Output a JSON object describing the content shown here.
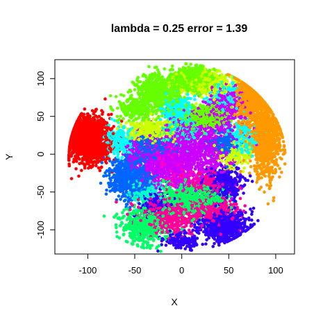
{
  "chart_data": {
    "type": "scatter",
    "title": "lambda = 0.25 error = 1.39",
    "xlabel": "X",
    "ylabel": "Y",
    "xlim": [
      -135,
      120
    ],
    "ylim": [
      -132,
      125
    ],
    "xticks": [
      -100,
      -50,
      0,
      50,
      100
    ],
    "yticks": [
      -100,
      -50,
      0,
      50,
      100
    ],
    "grid": false,
    "legend": "none",
    "series": [
      {
        "color": "#FF0000",
        "clusters": [
          {
            "x": -103,
            "y": 25,
            "sx": 13,
            "sy": 14,
            "n": 1200
          },
          {
            "x": -95,
            "y": 5,
            "sx": 10,
            "sy": 10,
            "n": 400
          }
        ]
      },
      {
        "color": "#FF9900",
        "clusters": [
          {
            "x": 73,
            "y": 75,
            "sx": 8,
            "sy": 22,
            "n": 700
          },
          {
            "x": 90,
            "y": 20,
            "sx": 9,
            "sy": 25,
            "n": 900
          }
        ]
      },
      {
        "color": "#66FF00",
        "clusters": [
          {
            "x": -25,
            "y": 80,
            "sx": 12,
            "sy": 13,
            "n": 600
          },
          {
            "x": 12,
            "y": 100,
            "sx": 12,
            "sy": 8,
            "n": 500
          },
          {
            "x": 25,
            "y": 50,
            "sx": 13,
            "sy": 8,
            "n": 400
          },
          {
            "x": -50,
            "y": 60,
            "sx": 8,
            "sy": 8,
            "n": 200
          }
        ]
      },
      {
        "color": "#CCFF00",
        "clusters": [
          {
            "x": 25,
            "y": 95,
            "sx": 14,
            "sy": 8,
            "n": 400
          },
          {
            "x": -35,
            "y": 30,
            "sx": 12,
            "sy": 8,
            "n": 350
          },
          {
            "x": 55,
            "y": 0,
            "sx": 10,
            "sy": 10,
            "n": 200
          }
        ]
      },
      {
        "color": "#00FFFF",
        "clusters": [
          {
            "x": -5,
            "y": 60,
            "sx": 8,
            "sy": 8,
            "n": 250
          },
          {
            "x": 65,
            "y": 20,
            "sx": 8,
            "sy": 10,
            "n": 250
          },
          {
            "x": 45,
            "y": 80,
            "sx": 8,
            "sy": 8,
            "n": 150
          },
          {
            "x": -65,
            "y": 15,
            "sx": 8,
            "sy": 10,
            "n": 200
          }
        ]
      },
      {
        "color": "#CC00FF",
        "clusters": [
          {
            "x": 15,
            "y": 10,
            "sx": 20,
            "sy": 22,
            "n": 900
          },
          {
            "x": 45,
            "y": 60,
            "sx": 10,
            "sy": 15,
            "n": 400
          },
          {
            "x": -15,
            "y": -15,
            "sx": 15,
            "sy": 15,
            "n": 500
          },
          {
            "x": -40,
            "y": 5,
            "sx": 10,
            "sy": 10,
            "n": 250
          }
        ]
      },
      {
        "color": "#0066FF",
        "clusters": [
          {
            "x": -55,
            "y": -30,
            "sx": 10,
            "sy": 13,
            "n": 800
          },
          {
            "x": -30,
            "y": 10,
            "sx": 10,
            "sy": 8,
            "n": 300
          },
          {
            "x": 45,
            "y": 15,
            "sx": 8,
            "sy": 8,
            "n": 200
          }
        ]
      },
      {
        "color": "#3300FF",
        "clusters": [
          {
            "x": 45,
            "y": -95,
            "sx": 13,
            "sy": 10,
            "n": 600
          },
          {
            "x": 45,
            "y": -40,
            "sx": 10,
            "sy": 10,
            "n": 350
          },
          {
            "x": 0,
            "y": -115,
            "sx": 10,
            "sy": 5,
            "n": 150
          },
          {
            "x": -30,
            "y": -65,
            "sx": 8,
            "sy": 8,
            "n": 150
          }
        ]
      },
      {
        "color": "#FF0099",
        "clusters": [
          {
            "x": -15,
            "y": -80,
            "sx": 15,
            "sy": 12,
            "n": 500
          },
          {
            "x": 30,
            "y": -75,
            "sx": 15,
            "sy": 10,
            "n": 400
          },
          {
            "x": 25,
            "y": -40,
            "sx": 10,
            "sy": 8,
            "n": 200
          }
        ]
      },
      {
        "color": "#00FF66",
        "clusters": [
          {
            "x": -40,
            "y": -95,
            "sx": 12,
            "sy": 13,
            "n": 500
          },
          {
            "x": 5,
            "y": -60,
            "sx": 15,
            "sy": 12,
            "n": 500
          },
          {
            "x": 35,
            "y": -60,
            "sx": 8,
            "sy": 8,
            "n": 150
          }
        ]
      },
      {
        "color": "#FF00CC",
        "clusters": [
          {
            "x": -20,
            "y": 0,
            "sx": 8,
            "sy": 8,
            "n": 150
          },
          {
            "x": 0,
            "y": -30,
            "sx": 10,
            "sy": 8,
            "n": 150
          }
        ]
      },
      {
        "color": "#00FFCC",
        "clusters": [
          {
            "x": 0,
            "y": 30,
            "sx": 10,
            "sy": 10,
            "n": 200
          },
          {
            "x": -40,
            "y": -50,
            "sx": 10,
            "sy": 8,
            "n": 150
          }
        ]
      }
    ]
  }
}
